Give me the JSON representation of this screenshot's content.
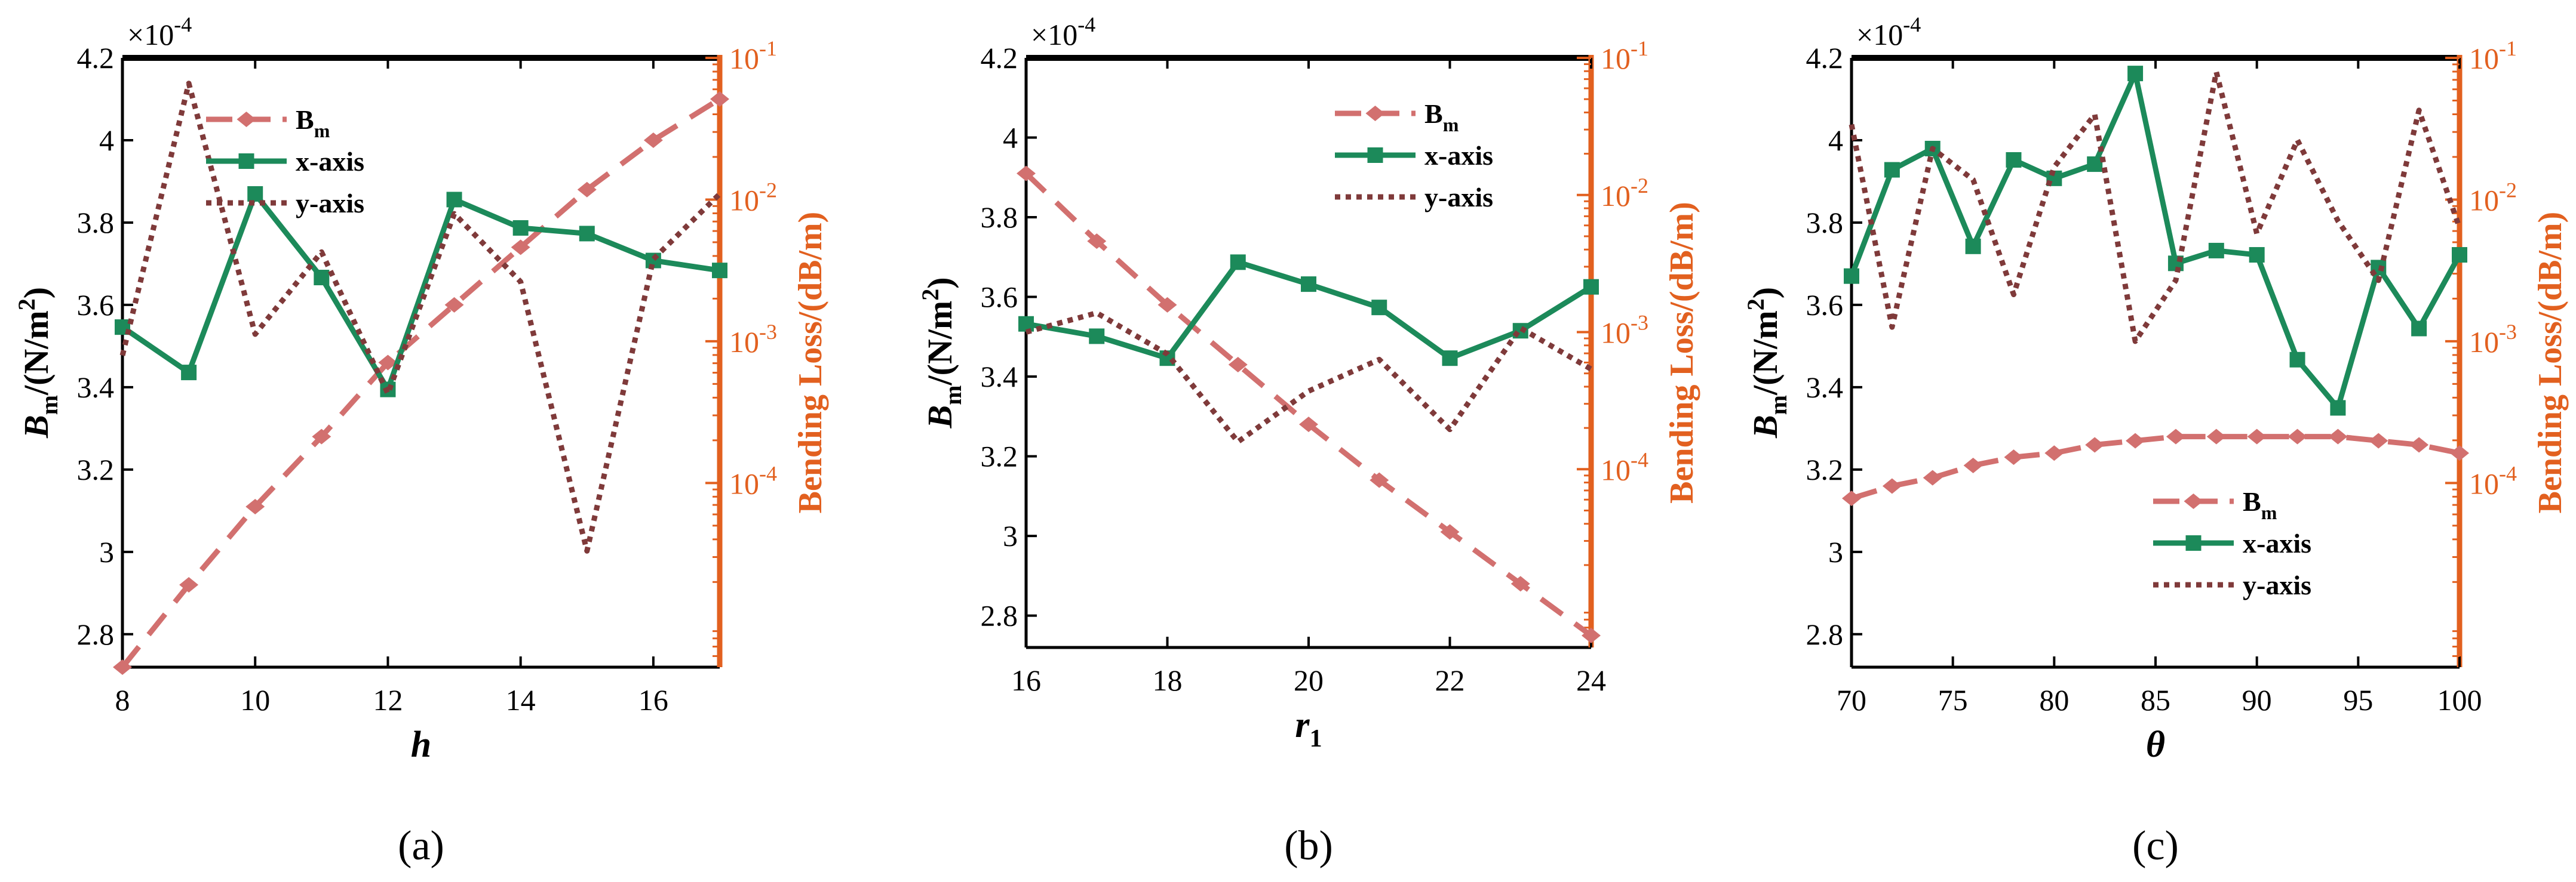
{
  "colors": {
    "frame": "#000000",
    "bending_axis": "#E2601F",
    "bm": "#D2706F",
    "x_axis": "#1C8A5A",
    "y_axis": "#7F3A3A"
  },
  "chart_data": [
    {
      "type": "line",
      "panel_label": "(a)",
      "xlabel": "h",
      "ylabel_main": "B",
      "ylabel_sub": "m",
      "ylabel_rest": "/(N/m",
      "ylabel_sup": "2",
      "ylabel_close": ")",
      "y2label": "Bending Loss/(dB/m)",
      "exponent_label": "×10",
      "exponent_power": "-4",
      "xlim": [
        8,
        17
      ],
      "xticks": [
        8,
        10,
        12,
        14,
        16
      ],
      "xtick_labels": [
        "8",
        "10",
        "12",
        "14",
        "16"
      ],
      "ylim": [
        2.72,
        4.2
      ],
      "yticks": [
        2.8,
        3,
        3.2,
        3.4,
        3.6,
        3.8,
        4,
        4.2
      ],
      "ytick_labels": [
        "2.8",
        "3",
        "3.2",
        "3.4",
        "3.6",
        "3.8",
        "4",
        "4.2"
      ],
      "y2_log_range": [
        -5.3,
        -1
      ],
      "y2ticks": [
        -4,
        -3,
        -2,
        -1
      ],
      "y2tick_base": "10",
      "y2tick_exps": [
        "-4",
        "-3",
        "-2",
        "-1"
      ],
      "legend_position": "top-center",
      "series": [
        {
          "name": "B",
          "name_sub": "m",
          "axis": "left",
          "style": "dashed",
          "marker": "diamond",
          "x": [
            8,
            9,
            10,
            11,
            12,
            13,
            14,
            15,
            16,
            17
          ],
          "values": [
            2.72,
            2.92,
            3.11,
            3.28,
            3.46,
            3.6,
            3.74,
            3.88,
            4.0,
            4.1
          ]
        },
        {
          "name": "x-axis",
          "axis": "right",
          "style": "solid",
          "marker": "square",
          "x": [
            8,
            9,
            10,
            11,
            12,
            13,
            14,
            15,
            16,
            17
          ],
          "values": [
            -2.9,
            -3.22,
            -1.96,
            -2.55,
            -3.34,
            -2.0,
            -2.2,
            -2.24,
            -2.43,
            -2.5
          ]
        },
        {
          "name": "y-axis",
          "axis": "right",
          "style": "dotted",
          "marker": "none",
          "x": [
            8,
            9,
            10,
            11,
            12,
            13,
            14,
            15,
            16,
            17
          ],
          "values": [
            -3.1,
            -1.18,
            -2.95,
            -2.37,
            -3.37,
            -2.1,
            -2.58,
            -4.48,
            -2.42,
            -1.96
          ]
        }
      ]
    },
    {
      "type": "line",
      "panel_label": "(b)",
      "xlabel": "r",
      "xlabel_sub": "1",
      "ylabel_main": "B",
      "ylabel_sub": "m",
      "ylabel_rest": "/(N/m",
      "ylabel_sup": "2",
      "ylabel_close": ")",
      "y2label": "Bending Loss/(dB/m)",
      "exponent_label": "×10",
      "exponent_power": "-4",
      "xlim": [
        16,
        24
      ],
      "xticks": [
        16,
        18,
        20,
        22,
        24
      ],
      "xtick_labels": [
        "16",
        "18",
        "20",
        "22",
        "24"
      ],
      "ylim": [
        2.72,
        4.2
      ],
      "yticks": [
        2.8,
        3,
        3.2,
        3.4,
        3.6,
        3.8,
        4,
        4.2
      ],
      "ytick_labels": [
        "2.8",
        "3",
        "3.2",
        "3.4",
        "3.6",
        "3.8",
        "4",
        "4.2"
      ],
      "y2_log_range": [
        -5.3,
        -1
      ],
      "y2ticks": [
        -4,
        -3,
        -2,
        -1
      ],
      "y2tick_base": "10",
      "y2tick_exps": [
        "-4",
        "-3",
        "-2",
        "-1"
      ],
      "legend_position": "top-right",
      "series": [
        {
          "name": "B",
          "name_sub": "m",
          "axis": "left",
          "style": "dashed",
          "marker": "diamond",
          "x": [
            16,
            17,
            18,
            19,
            20,
            21,
            22,
            23,
            24
          ],
          "values": [
            3.91,
            3.74,
            3.58,
            3.43,
            3.28,
            3.14,
            3.01,
            2.88,
            2.75
          ]
        },
        {
          "name": "x-axis",
          "axis": "right",
          "style": "solid",
          "marker": "square",
          "x": [
            16,
            17,
            18,
            19,
            20,
            21,
            22,
            23,
            24
          ],
          "values": [
            -2.94,
            -3.03,
            -3.19,
            -2.49,
            -2.65,
            -2.82,
            -3.19,
            -2.99,
            -2.67
          ]
        },
        {
          "name": "y-axis",
          "axis": "right",
          "style": "dotted",
          "marker": "none",
          "x": [
            16,
            17,
            18,
            19,
            20,
            21,
            22,
            23,
            24
          ],
          "values": [
            -3.0,
            -2.86,
            -3.16,
            -3.8,
            -3.43,
            -3.2,
            -3.71,
            -2.97,
            -3.27
          ]
        }
      ]
    },
    {
      "type": "line",
      "panel_label": "(c)",
      "xlabel": "θ",
      "ylabel_main": "B",
      "ylabel_sub": "m",
      "ylabel_rest": "/(N/m",
      "ylabel_sup": "2",
      "ylabel_close": ")",
      "y2label": "Bending Loss/(dB/m)",
      "exponent_label": "×10",
      "exponent_power": "-4",
      "xlim": [
        70,
        100
      ],
      "xticks": [
        70,
        75,
        80,
        85,
        90,
        95,
        100
      ],
      "xtick_labels": [
        "70",
        "75",
        "80",
        "85",
        "90",
        "95",
        "100"
      ],
      "ylim": [
        2.72,
        4.2
      ],
      "yticks": [
        2.8,
        3,
        3.2,
        3.4,
        3.6,
        3.8,
        4,
        4.2
      ],
      "ytick_labels": [
        "2.8",
        "3",
        "3.2",
        "3.4",
        "3.6",
        "3.8",
        "4",
        "4.2"
      ],
      "y2_log_range": [
        -5.3,
        -1
      ],
      "y2ticks": [
        -4,
        -3,
        -2,
        -1
      ],
      "y2tick_base": "10",
      "y2tick_exps": [
        "-4",
        "-3",
        "-2",
        "-1"
      ],
      "legend_position": "bottom-right",
      "series": [
        {
          "name": "B",
          "name_sub": "m",
          "axis": "left",
          "style": "dashed",
          "marker": "diamond",
          "x": [
            70,
            72,
            74,
            76,
            78,
            80,
            82,
            84,
            86,
            88,
            90,
            92,
            94,
            96,
            98,
            100
          ],
          "values": [
            3.13,
            3.16,
            3.18,
            3.21,
            3.23,
            3.24,
            3.26,
            3.27,
            3.28,
            3.28,
            3.28,
            3.28,
            3.28,
            3.27,
            3.26,
            3.24
          ]
        },
        {
          "name": "x-axis",
          "axis": "right",
          "style": "solid",
          "marker": "square",
          "x": [
            70,
            72,
            74,
            76,
            78,
            80,
            82,
            84,
            86,
            88,
            90,
            92,
            94,
            96,
            98,
            100
          ],
          "values": [
            -2.54,
            -1.79,
            -1.64,
            -2.33,
            -1.72,
            -1.85,
            -1.75,
            -1.11,
            -2.45,
            -2.36,
            -2.39,
            -3.13,
            -3.47,
            -2.48,
            -2.91,
            -2.39
          ]
        },
        {
          "name": "y-axis",
          "axis": "right",
          "style": "dotted",
          "marker": "none",
          "x": [
            70,
            72,
            74,
            76,
            78,
            80,
            82,
            84,
            86,
            88,
            90,
            92,
            94,
            96,
            98,
            100
          ],
          "values": [
            -1.47,
            -2.9,
            -1.64,
            -1.86,
            -2.67,
            -1.77,
            -1.4,
            -3.0,
            -2.57,
            -1.1,
            -2.24,
            -1.58,
            -2.15,
            -2.57,
            -1.37,
            -2.2
          ]
        }
      ]
    }
  ]
}
